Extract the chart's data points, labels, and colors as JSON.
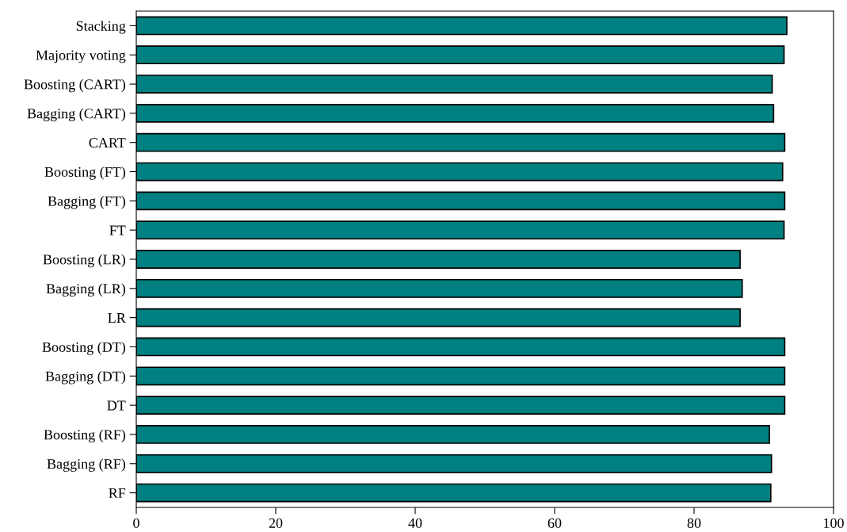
{
  "chart_data": {
    "type": "bar",
    "orientation": "horizontal",
    "categories": [
      "Stacking",
      "Majority voting",
      "Boosting (CART)",
      "Bagging (CART)",
      "CART",
      "Boosting (FT)",
      "Bagging (FT)",
      "FT",
      "Boosting (LR)",
      "Bagging (LR)",
      "LR",
      "Boosting (DT)",
      "Bagging (DT)",
      "DT",
      "Boosting (RF)",
      "Bagging (RF)",
      "RF"
    ],
    "values": [
      93.3,
      92.9,
      91.2,
      91.4,
      93.0,
      92.7,
      93.0,
      92.9,
      86.6,
      86.9,
      86.6,
      93.0,
      93.0,
      93.0,
      90.8,
      91.1,
      91.0
    ],
    "color": "#008080",
    "xlim": [
      0,
      100
    ],
    "xticks": [
      0,
      20,
      40,
      60,
      80,
      100
    ],
    "grid": false
  }
}
